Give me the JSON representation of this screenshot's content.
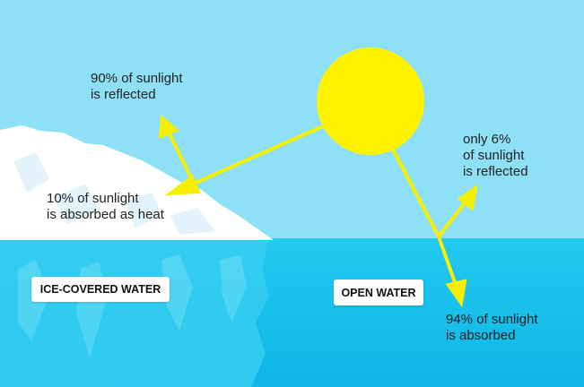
{
  "labels": {
    "ice_reflected": "90% of sunlight\nis reflected",
    "ice_absorbed": "10% of sunlight\nis absorbed as heat",
    "water_reflected": "only 6%\nof sunlight\nis reflected",
    "water_absorbed": "94% of sunlight\nis absorbed"
  },
  "boxes": {
    "ice_covered": "ICE-COVERED WATER",
    "open_water": "OPEN WATER"
  },
  "colors": {
    "sky": "#8ee0f6",
    "water": "#17c3ee",
    "ice": "#ffffff",
    "sun": "#fff200",
    "ray": "#f6f000"
  }
}
